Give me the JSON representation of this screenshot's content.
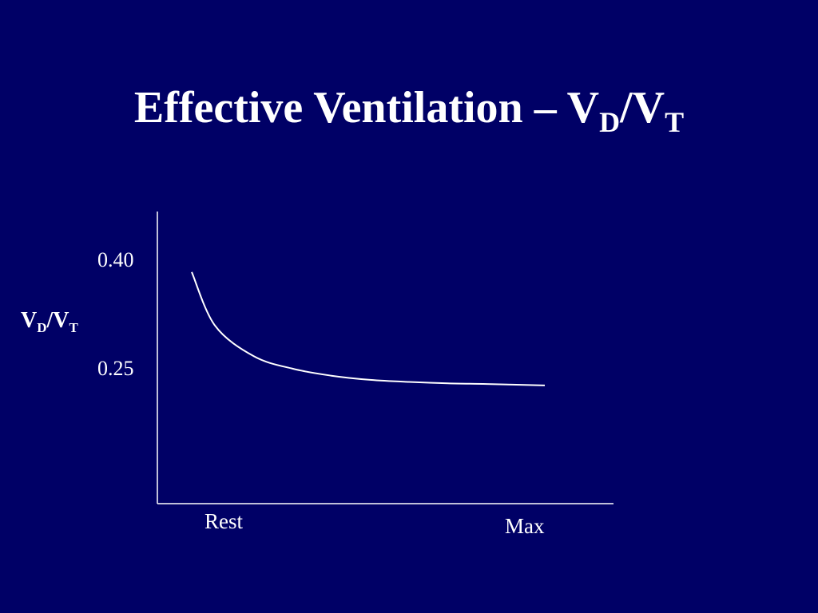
{
  "slide": {
    "title_main": "Effective Ventilation – V",
    "title_sub1": "D",
    "title_sep": "/V",
    "title_sub2": "T"
  },
  "chart_data": {
    "type": "line",
    "title": "Effective Ventilation – VD/VT",
    "ylabel": {
      "main": "V",
      "sub1": "D",
      "sep": "/V",
      "sub2": "T"
    },
    "yticks": [
      {
        "label": "0.40",
        "value": 0.4
      },
      {
        "label": "0.25",
        "value": 0.25
      }
    ],
    "xticks": [
      {
        "label": "Rest"
      },
      {
        "label": "Max"
      }
    ],
    "ylim": [
      0.05,
      0.47
    ],
    "grid": false,
    "legend": "none",
    "series": [
      {
        "color": "#ffffff",
        "x": [
          0.09,
          0.15,
          0.25,
          0.35,
          0.45,
          0.55,
          0.65,
          0.75,
          0.85,
          1.0
        ],
        "y": [
          0.383,
          0.306,
          0.262,
          0.244,
          0.234,
          0.228,
          0.225,
          0.223,
          0.222,
          0.22
        ]
      }
    ]
  }
}
